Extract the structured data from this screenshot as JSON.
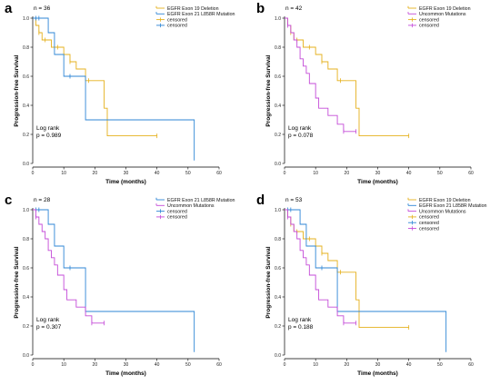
{
  "colors": {
    "exon19": "#E5B01C",
    "l858r": "#2E86D6",
    "uncommon": "#C44BD8",
    "axis": "#000000"
  },
  "chart_data": [
    {
      "type": "line",
      "panel": "a",
      "n_label": "n = 36",
      "xlabel": "Time (months)",
      "ylabel": "Progression-free Survival",
      "xlim": [
        0,
        60
      ],
      "ylim": [
        0,
        1.0
      ],
      "xticks": [
        "0",
        "10",
        "20",
        "30",
        "40",
        "50",
        "60"
      ],
      "yticks": [
        "0.0",
        "0.2",
        "0.4",
        "0.6",
        "0.8",
        "1.0"
      ],
      "grid": false,
      "legend_position": "top-right",
      "legend": [
        {
          "label": "EGFR Exon 19 Deletion",
          "color_key": "exon19",
          "marker": "line"
        },
        {
          "label": "EGFR Exon 21 L858R Mutation",
          "color_key": "l858r",
          "marker": "line"
        },
        {
          "label": "censored",
          "color_key": "exon19",
          "marker": "cross"
        },
        {
          "label": "censored",
          "color_key": "l858r",
          "marker": "cross"
        }
      ],
      "logrank": [
        "Log rank",
        "p = 0.989"
      ],
      "series": [
        {
          "name": "EGFR Exon 19 Deletion",
          "color_key": "exon19",
          "x": [
            0,
            1,
            2,
            3,
            4,
            6,
            8,
            10,
            12,
            14,
            17,
            18,
            23,
            24,
            40
          ],
          "y": [
            1.0,
            0.95,
            0.9,
            0.85,
            0.85,
            0.8,
            0.8,
            0.75,
            0.7,
            0.65,
            0.57,
            0.57,
            0.38,
            0.19,
            0.19
          ],
          "censor_x": [
            2,
            4,
            8,
            12,
            18,
            40
          ],
          "censor_y": [
            0.9,
            0.85,
            0.8,
            0.7,
            0.57,
            0.19
          ]
        },
        {
          "name": "EGFR Exon 21 L858R Mutation",
          "color_key": "l858r",
          "x": [
            0,
            1,
            2,
            5,
            7,
            10,
            17,
            52,
            52
          ],
          "y": [
            1.0,
            1.0,
            1.0,
            0.9,
            0.75,
            0.6,
            0.3,
            0.3,
            0.02
          ],
          "censor_x": [
            1,
            2,
            12
          ],
          "censor_y": [
            1.0,
            1.0,
            0.6
          ]
        }
      ]
    },
    {
      "type": "line",
      "panel": "b",
      "n_label": "n = 42",
      "xlabel": "Time (months)",
      "ylabel": "Progression-free Survival",
      "xlim": [
        0,
        60
      ],
      "ylim": [
        0,
        1.0
      ],
      "xticks": [
        "0",
        "10",
        "20",
        "30",
        "40",
        "50",
        "60"
      ],
      "yticks": [
        "0.0",
        "0.2",
        "0.4",
        "0.6",
        "0.8",
        "1.0"
      ],
      "grid": false,
      "legend_position": "top-right",
      "legend": [
        {
          "label": "EGFR Exon 19 Deletion",
          "color_key": "exon19",
          "marker": "line"
        },
        {
          "label": "Uncommon Mutations",
          "color_key": "uncommon",
          "marker": "line"
        },
        {
          "label": "censored",
          "color_key": "exon19",
          "marker": "cross"
        },
        {
          "label": "censored",
          "color_key": "uncommon",
          "marker": "cross"
        }
      ],
      "logrank": [
        "Log rank",
        "p = 0.078"
      ],
      "series": [
        {
          "name": "EGFR Exon 19 Deletion",
          "color_key": "exon19",
          "x": [
            0,
            1,
            2,
            3,
            4,
            6,
            8,
            10,
            12,
            14,
            17,
            18,
            23,
            24,
            40
          ],
          "y": [
            1.0,
            0.95,
            0.9,
            0.85,
            0.85,
            0.8,
            0.8,
            0.75,
            0.7,
            0.65,
            0.57,
            0.57,
            0.38,
            0.19,
            0.19
          ],
          "censor_x": [
            2,
            4,
            8,
            12,
            18,
            40
          ],
          "censor_y": [
            0.9,
            0.85,
            0.8,
            0.7,
            0.57,
            0.19
          ]
        },
        {
          "name": "Uncommon Mutations",
          "color_key": "uncommon",
          "x": [
            0,
            1,
            2,
            3,
            4,
            5,
            6,
            7,
            8,
            10,
            11,
            14,
            17,
            19,
            23
          ],
          "y": [
            1.0,
            0.95,
            0.9,
            0.85,
            0.8,
            0.72,
            0.67,
            0.62,
            0.55,
            0.45,
            0.38,
            0.33,
            0.27,
            0.22,
            0.22
          ],
          "censor_x": [
            1,
            19,
            23
          ],
          "censor_y": [
            0.95,
            0.22,
            0.22
          ]
        }
      ]
    },
    {
      "type": "line",
      "panel": "c",
      "n_label": "n = 28",
      "xlabel": "Time (months)",
      "ylabel": "Progression-free Survival",
      "xlim": [
        0,
        60
      ],
      "ylim": [
        0,
        1.0
      ],
      "xticks": [
        "0",
        "10",
        "20",
        "30",
        "40",
        "50",
        "60"
      ],
      "yticks": [
        "0.0",
        "0.2",
        "0.4",
        "0.6",
        "0.8",
        "1.0"
      ],
      "grid": false,
      "legend_position": "top-right",
      "legend": [
        {
          "label": "EGFR Exon 21 L858R Mutation",
          "color_key": "l858r",
          "marker": "line"
        },
        {
          "label": "Uncommon Mutations",
          "color_key": "uncommon",
          "marker": "line"
        },
        {
          "label": "censored",
          "color_key": "l858r",
          "marker": "cross"
        },
        {
          "label": "censored",
          "color_key": "uncommon",
          "marker": "cross"
        }
      ],
      "logrank": [
        "Log rank",
        "p = 0.307"
      ],
      "series": [
        {
          "name": "EGFR Exon 21 L858R Mutation",
          "color_key": "l858r",
          "x": [
            0,
            1,
            2,
            5,
            7,
            10,
            17,
            52,
            52
          ],
          "y": [
            1.0,
            1.0,
            1.0,
            0.9,
            0.75,
            0.6,
            0.3,
            0.3,
            0.02
          ],
          "censor_x": [
            1,
            2,
            12
          ],
          "censor_y": [
            1.0,
            1.0,
            0.6
          ]
        },
        {
          "name": "Uncommon Mutations",
          "color_key": "uncommon",
          "x": [
            0,
            1,
            2,
            3,
            4,
            5,
            6,
            7,
            8,
            10,
            11,
            14,
            17,
            19,
            23
          ],
          "y": [
            1.0,
            0.95,
            0.9,
            0.85,
            0.8,
            0.72,
            0.67,
            0.62,
            0.55,
            0.45,
            0.38,
            0.33,
            0.27,
            0.22,
            0.22
          ],
          "censor_x": [
            1,
            19,
            23
          ],
          "censor_y": [
            0.95,
            0.22,
            0.22
          ]
        }
      ]
    },
    {
      "type": "line",
      "panel": "d",
      "n_label": "n = 53",
      "xlabel": "Time (months)",
      "ylabel": "Progression-free Survival",
      "xlim": [
        0,
        60
      ],
      "ylim": [
        0,
        1.0
      ],
      "xticks": [
        "0",
        "10",
        "20",
        "30",
        "40",
        "50",
        "60"
      ],
      "yticks": [
        "0.0",
        "0.2",
        "0.4",
        "0.6",
        "0.8",
        "1.0"
      ],
      "grid": false,
      "legend_position": "top-right",
      "legend": [
        {
          "label": "EGFR Exon 19 Deletion",
          "color_key": "exon19",
          "marker": "line"
        },
        {
          "label": "EGFR Exon 21 L858R Mutation",
          "color_key": "l858r",
          "marker": "line"
        },
        {
          "label": "Uncommon Mutations",
          "color_key": "uncommon",
          "marker": "line"
        },
        {
          "label": "censored",
          "color_key": "exon19",
          "marker": "cross"
        },
        {
          "label": "censored",
          "color_key": "l858r",
          "marker": "cross"
        },
        {
          "label": "censored",
          "color_key": "uncommon",
          "marker": "cross"
        }
      ],
      "logrank": [
        "Log rank",
        "p = 0.188"
      ],
      "series": [
        {
          "name": "EGFR Exon 19 Deletion",
          "color_key": "exon19",
          "x": [
            0,
            1,
            2,
            3,
            4,
            6,
            8,
            10,
            12,
            14,
            17,
            18,
            23,
            24,
            40
          ],
          "y": [
            1.0,
            0.95,
            0.9,
            0.85,
            0.85,
            0.8,
            0.8,
            0.75,
            0.7,
            0.65,
            0.57,
            0.57,
            0.38,
            0.19,
            0.19
          ],
          "censor_x": [
            2,
            4,
            8,
            12,
            18,
            40
          ],
          "censor_y": [
            0.9,
            0.85,
            0.8,
            0.7,
            0.57,
            0.19
          ]
        },
        {
          "name": "EGFR Exon 21 L858R Mutation",
          "color_key": "l858r",
          "x": [
            0,
            1,
            2,
            5,
            7,
            10,
            17,
            52,
            52
          ],
          "y": [
            1.0,
            1.0,
            1.0,
            0.9,
            0.75,
            0.6,
            0.3,
            0.3,
            0.02
          ],
          "censor_x": [
            1,
            2,
            12
          ],
          "censor_y": [
            1.0,
            1.0,
            0.6
          ]
        },
        {
          "name": "Uncommon Mutations",
          "color_key": "uncommon",
          "x": [
            0,
            1,
            2,
            3,
            4,
            5,
            6,
            7,
            8,
            10,
            11,
            14,
            17,
            19,
            23
          ],
          "y": [
            1.0,
            0.95,
            0.9,
            0.85,
            0.8,
            0.72,
            0.67,
            0.62,
            0.55,
            0.45,
            0.38,
            0.33,
            0.27,
            0.22,
            0.22
          ],
          "censor_x": [
            1,
            19,
            23
          ],
          "censor_y": [
            0.95,
            0.22,
            0.22
          ]
        }
      ]
    }
  ]
}
